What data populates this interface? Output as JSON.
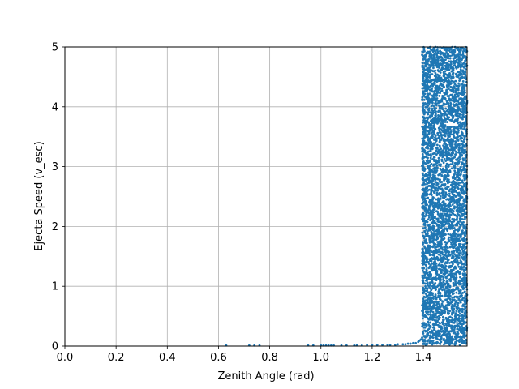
{
  "chart_data": {
    "type": "scatter",
    "xlabel": "Zenith Angle (rad)",
    "ylabel": "Ejecta Speed (v_esc)",
    "xlim": [
      0.0,
      1.5708
    ],
    "ylim": [
      0,
      5
    ],
    "x_ticks": [
      "0.0",
      "0.2",
      "0.4",
      "0.6",
      "0.8",
      "1.0",
      "1.2",
      "1.4"
    ],
    "y_ticks": [
      "0",
      "1",
      "2",
      "3",
      "4",
      "5"
    ],
    "grid": true,
    "marker_color": "#1f77b4",
    "series": [
      {
        "sparse_points": [
          [
            0.63,
            0.01
          ],
          [
            0.72,
            0.01
          ],
          [
            0.74,
            0.01
          ],
          [
            0.76,
            0.01
          ],
          [
            0.95,
            0.01
          ],
          [
            0.97,
            0.01
          ],
          [
            1.0,
            0.01
          ],
          [
            1.01,
            0.01
          ],
          [
            1.02,
            0.01
          ],
          [
            1.03,
            0.01
          ],
          [
            1.04,
            0.01
          ],
          [
            1.05,
            0.01
          ],
          [
            1.08,
            0.01
          ],
          [
            1.1,
            0.01
          ],
          [
            1.13,
            0.01
          ],
          [
            1.14,
            0.01
          ],
          [
            1.16,
            0.01
          ],
          [
            1.18,
            0.02
          ],
          [
            1.2,
            0.02
          ],
          [
            1.22,
            0.02
          ],
          [
            1.24,
            0.02
          ],
          [
            1.26,
            0.02
          ],
          [
            1.27,
            0.02
          ],
          [
            1.29,
            0.02
          ],
          [
            1.3,
            0.03
          ],
          [
            1.32,
            0.03
          ],
          [
            1.33,
            0.03
          ],
          [
            1.34,
            0.04
          ],
          [
            1.35,
            0.04
          ],
          [
            1.36,
            0.05
          ],
          [
            1.37,
            0.05
          ],
          [
            1.38,
            0.07
          ],
          [
            1.385,
            0.09
          ],
          [
            1.39,
            0.11
          ],
          [
            1.395,
            0.14
          ]
        ],
        "dense_region": {
          "x_range": [
            1.395,
            1.5708
          ],
          "y_range": [
            0.02,
            5.0
          ],
          "approx_points": 4500
        }
      }
    ]
  }
}
